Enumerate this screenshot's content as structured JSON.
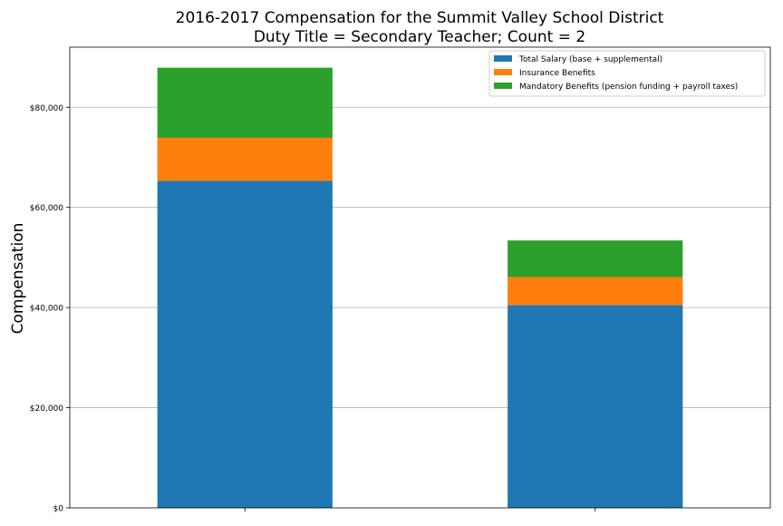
{
  "chart_data": {
    "type": "bar",
    "stacked": true,
    "title": "2016-2017 Compensation for the Summit Valley School District",
    "subtitle": "Duty Title = Secondary Teacher; Count = 2",
    "xlabel": "",
    "ylabel": "Compensation",
    "ylim": [
      0,
      92000
    ],
    "yticks": [
      0,
      20000,
      40000,
      60000,
      80000
    ],
    "ytick_labels": [
      "$0",
      "$20,000",
      "$40,000",
      "$60,000",
      "$80,000"
    ],
    "grid": "horizontal",
    "legend_position": "top-right",
    "categories": [
      "",
      ""
    ],
    "series": [
      {
        "name": "Total Salary (base + supplemental)",
        "color": "#1f77b4",
        "values": [
          65300,
          40500
        ]
      },
      {
        "name": "Insurance Benefits",
        "color": "#ff7f0e",
        "values": [
          8600,
          5600
        ]
      },
      {
        "name": "Mandatory Benefits (pension funding + payroll taxes)",
        "color": "#2ca02c",
        "values": [
          14000,
          7300
        ]
      }
    ]
  }
}
